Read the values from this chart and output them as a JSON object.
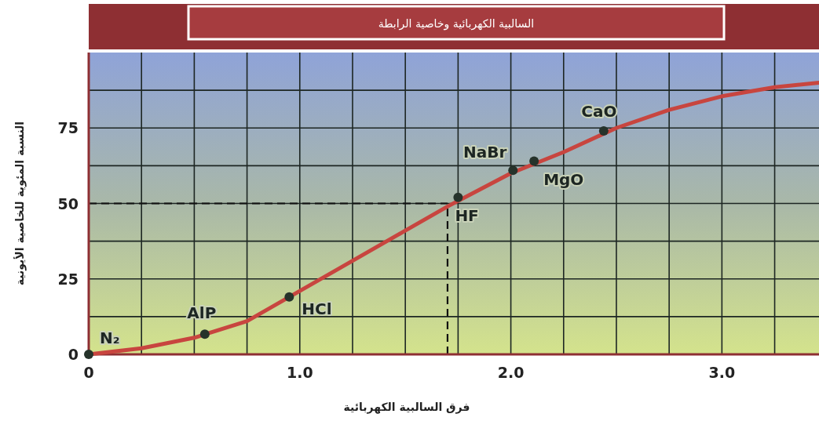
{
  "chart_data": {
    "type": "line",
    "title": "السالبية الكهربائية وخاصية الرابطة",
    "xlabel": "فرق السالبية الكهربائية",
    "ylabel": "النسبة المئوية للخاصية الأيونية",
    "xlim": [
      0,
      3.46
    ],
    "ylim": [
      0,
      100
    ],
    "xticks": [
      0,
      {
        "value": 0.25,
        "label": null
      },
      {
        "value": 0.5,
        "label": null
      },
      {
        "value": 0.75,
        "label": null
      },
      {
        "value": 1,
        "label": "1.0"
      },
      {
        "value": 1.25,
        "label": null
      },
      {
        "value": 1.5,
        "label": null
      },
      {
        "value": 1.75,
        "label": null
      },
      {
        "value": 2,
        "label": "2.0"
      },
      {
        "value": 2.25,
        "label": null
      },
      {
        "value": 2.5,
        "label": null
      },
      {
        "value": 2.75,
        "label": null
      },
      {
        "value": 3,
        "label": "3.0"
      },
      {
        "value": 3.25,
        "label": null
      }
    ],
    "yticks": [
      0,
      {
        "value": 12.5,
        "label": null
      },
      25,
      {
        "value": 37.5,
        "label": null
      },
      50,
      {
        "value": 62.5,
        "label": null
      },
      75,
      {
        "value": 87.5,
        "label": null
      }
    ],
    "grid": true,
    "line_style": "solid",
    "series": [
      {
        "color": "#c8453f",
        "marker": "none",
        "x": [
          0,
          0.25,
          0.5,
          0.75,
          1,
          1.25,
          1.5,
          1.7,
          2,
          2.25,
          2.5,
          2.75,
          3,
          3.25,
          3.46
        ],
        "values": [
          0,
          2,
          5.5,
          11,
          21,
          31,
          41,
          49,
          60,
          67,
          75,
          81,
          85.5,
          88.5,
          90
        ]
      },
      {
        "type": "scatter",
        "color": "#26332b",
        "marker": "circle",
        "x": [
          0,
          0.55,
          0.95,
          1.75,
          2.01,
          2.11,
          2.44
        ],
        "values": [
          0,
          6.7,
          19,
          52,
          61,
          64,
          74
        ]
      }
    ],
    "ref_lines": [
      {
        "axis": "y",
        "value": 50,
        "color": "#111111",
        "line_style": "dashed"
      },
      {
        "axis": "x",
        "value": 1.7,
        "color": "#111111",
        "line_style": "dashed"
      }
    ],
    "annotations": [
      {
        "text": "N₂",
        "x": 0,
        "y": 0
      },
      {
        "text": "AlP",
        "x": 0.55,
        "y": 6.7
      },
      {
        "text": "HCl",
        "x": 0.95,
        "y": 19
      },
      {
        "text": "HF",
        "x": 1.75,
        "y": 52
      },
      {
        "text": "NaBr",
        "x": 2.01,
        "y": 61
      },
      {
        "text": "MgO",
        "x": 2.11,
        "y": 64
      },
      {
        "text": "CaO",
        "x": 2.44,
        "y": 74
      }
    ]
  }
}
